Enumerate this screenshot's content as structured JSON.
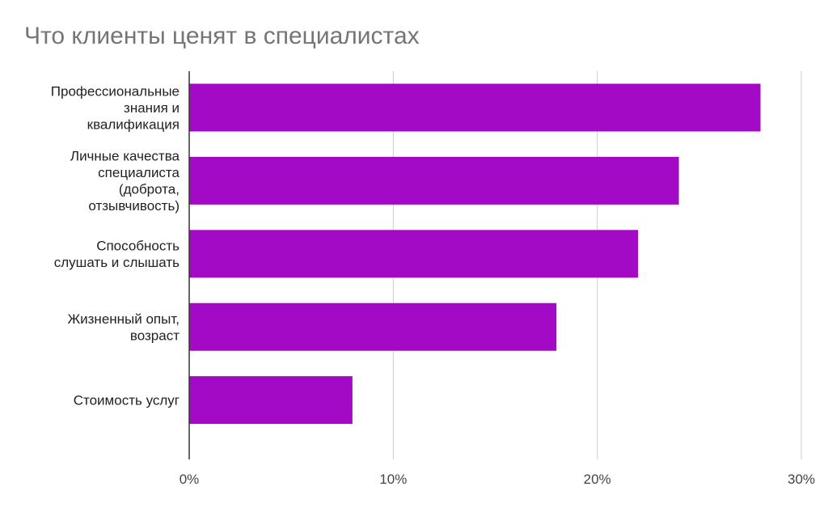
{
  "chart_data": {
    "type": "bar",
    "orientation": "horizontal",
    "title": "Что клиенты ценят в специалистах",
    "xlabel": "",
    "ylabel": "",
    "categories": [
      [
        "Профессиональные",
        "знания и",
        "квалификация"
      ],
      [
        "Личные качества",
        "специалиста",
        "(доброта,",
        "отзывчивость)"
      ],
      [
        "Способность",
        "слушать и слышать"
      ],
      [
        "Жизненный опыт,",
        "возраст"
      ],
      [
        "Стоимость услуг"
      ]
    ],
    "values": [
      28,
      24,
      22,
      18,
      8
    ],
    "xlim": [
      0,
      30
    ],
    "ticks": [
      0,
      10,
      20,
      30
    ],
    "tick_labels": [
      "0%",
      "10%",
      "20%",
      "30%"
    ],
    "grid": true,
    "legend": "none",
    "colors": {
      "bar": "#a20ac5",
      "grid": "#cccccc",
      "axis": "#333333"
    }
  }
}
